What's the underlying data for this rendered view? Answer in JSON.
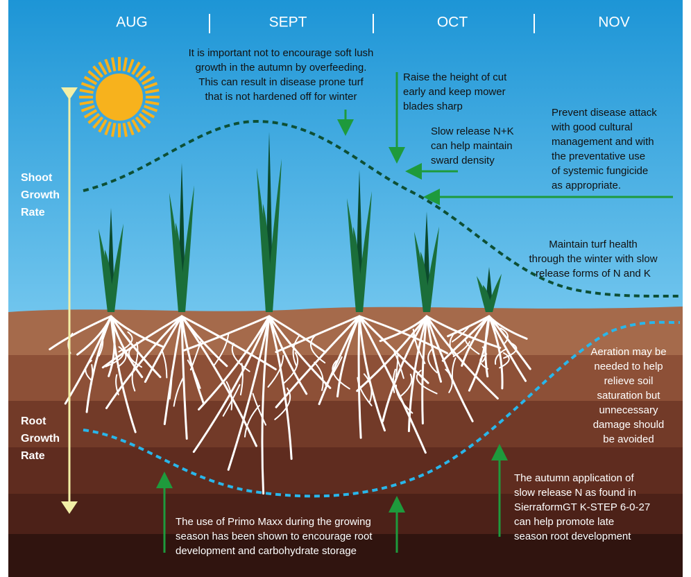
{
  "months": [
    "AUG",
    "SEPT",
    "OCT",
    "NOV"
  ],
  "shoot_label": [
    "Shoot",
    "Growth",
    "Rate"
  ],
  "root_label": [
    "Root",
    "Growth",
    "Rate"
  ],
  "notes": [
    {
      "lines": [
        "It is important not to encourage soft lush",
        "growth in the autumn by overfeeding.",
        "This can result in disease prone turf",
        "that is not hardened off for winter"
      ]
    },
    {
      "lines": [
        "Raise the height of cut",
        "early and keep mower",
        "blades sharp"
      ]
    },
    {
      "lines": [
        "Slow release N+K",
        "can help maintain",
        "sward density"
      ]
    },
    {
      "lines": [
        "Prevent disease attack",
        "with good cultural",
        "management and with",
        "the preventative use",
        "of systemic fungicide",
        "as appropriate."
      ]
    },
    {
      "lines": [
        "Maintain turf health",
        "through the winter with slow",
        "release forms of N and K"
      ]
    },
    {
      "lines": [
        "Aeration may be",
        "needed to help",
        "relieve soil",
        "saturation but",
        "unnecessary",
        "damage should",
        "be avoided"
      ]
    },
    {
      "lines": [
        "The autumn application of",
        "slow release N as found in",
        "SierraformGT K-STEP 6-0-27",
        "can help promote late",
        "season root development"
      ]
    },
    {
      "lines": [
        "The use of Primo Maxx during the growing",
        "season has been shown to encourage root",
        "development and carbohydrate storage"
      ]
    }
  ]
}
